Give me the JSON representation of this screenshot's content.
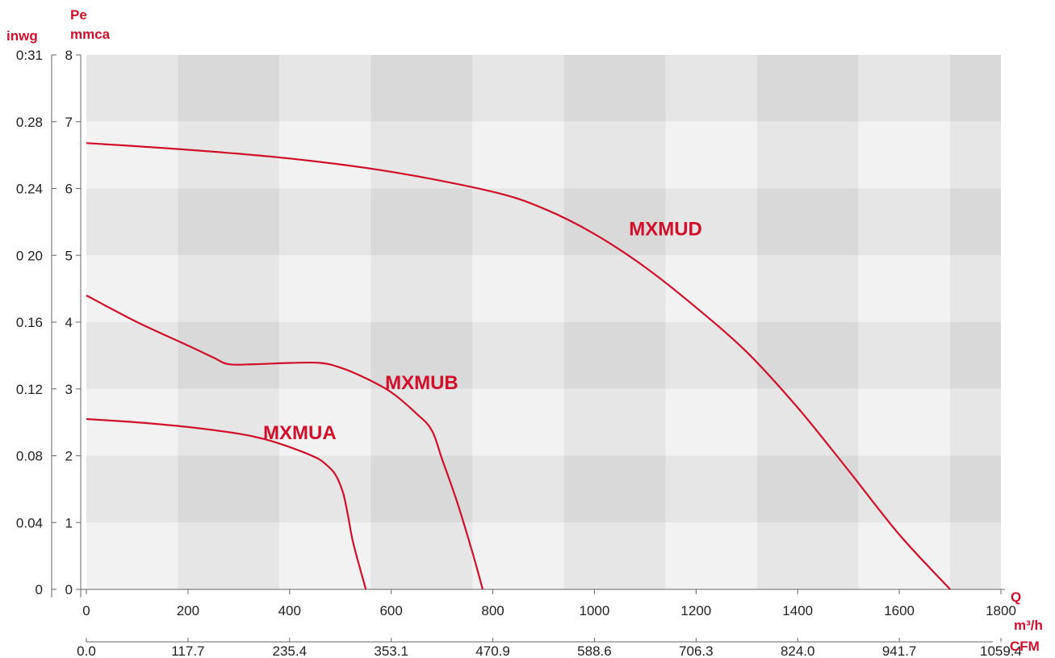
{
  "chart_data": {
    "type": "line",
    "title": "",
    "axes": {
      "y_left_outer": {
        "unit": "inwg",
        "tick_labels": [
          "0",
          "0.04",
          "0.08",
          "0.12",
          "0.16",
          "0 20",
          "0.24",
          "0.28",
          "0:31"
        ]
      },
      "y_left_inner": {
        "unit_top": "Pe",
        "unit_bottom": "mmca",
        "ylim": [
          0,
          8
        ],
        "ticks": [
          0,
          1,
          2,
          3,
          4,
          5,
          6,
          7,
          8
        ]
      },
      "x_primary": {
        "unit_top": "Q",
        "unit_bottom": "m³/h",
        "xlim": [
          0,
          1800
        ],
        "ticks": [
          0,
          200,
          400,
          600,
          800,
          1000,
          1200,
          1400,
          1600,
          1800
        ]
      },
      "x_secondary": {
        "unit": "CFM",
        "tick_labels": [
          "0.0",
          "117.7",
          "235.4",
          "353.1",
          "470.9",
          "588.6",
          "706.3",
          "824.0",
          "941.7",
          "1059.4"
        ]
      }
    },
    "background": {
      "type": "checkerboard",
      "column_edges": [
        0,
        180,
        380,
        560,
        760,
        940,
        1140,
        1320,
        1520,
        1700,
        1800
      ],
      "row_edges": [
        0,
        1,
        2,
        3,
        4,
        5,
        6,
        7,
        8
      ]
    },
    "series": [
      {
        "name": "MXMUA",
        "color": "#d0102a",
        "x": [
          0,
          100,
          200,
          300,
          350,
          400,
          450,
          470,
          490,
          505,
          515,
          525,
          550
        ],
        "y": [
          2.55,
          2.5,
          2.43,
          2.33,
          2.25,
          2.13,
          1.98,
          1.88,
          1.72,
          1.45,
          1.1,
          0.7,
          0.0
        ]
      },
      {
        "name": "MXMUB",
        "color": "#d0102a",
        "x": [
          0,
          100,
          200,
          250,
          280,
          330,
          400,
          460,
          500,
          550,
          600,
          650,
          680,
          700,
          730,
          760,
          780
        ],
        "y": [
          4.4,
          4.0,
          3.65,
          3.47,
          3.37,
          3.37,
          3.39,
          3.39,
          3.32,
          3.16,
          2.95,
          2.63,
          2.38,
          1.95,
          1.3,
          0.55,
          0.0
        ]
      },
      {
        "name": "MXMUD",
        "color": "#d0102a",
        "x": [
          0,
          200,
          400,
          600,
          800,
          900,
          1000,
          1100,
          1200,
          1300,
          1400,
          1500,
          1600,
          1700
        ],
        "y": [
          6.68,
          6.58,
          6.45,
          6.25,
          5.95,
          5.7,
          5.32,
          4.82,
          4.22,
          3.55,
          2.72,
          1.78,
          0.82,
          0.0
        ]
      }
    ],
    "curve_labels": [
      {
        "text": "MXMUA",
        "x": 420,
        "y": 2.25
      },
      {
        "text": "MXMUB",
        "x": 660,
        "y": 3.0
      },
      {
        "text": "MXMUD",
        "x": 1140,
        "y": 5.3
      }
    ],
    "grid": false,
    "legend": "none",
    "colors": {
      "curve": "#d0102a",
      "unit_text": "#d0102a",
      "light_cell": "#f2f2f2",
      "mid_cell": "#e6e6e6",
      "dark_cell": "#d9d9d9"
    }
  }
}
